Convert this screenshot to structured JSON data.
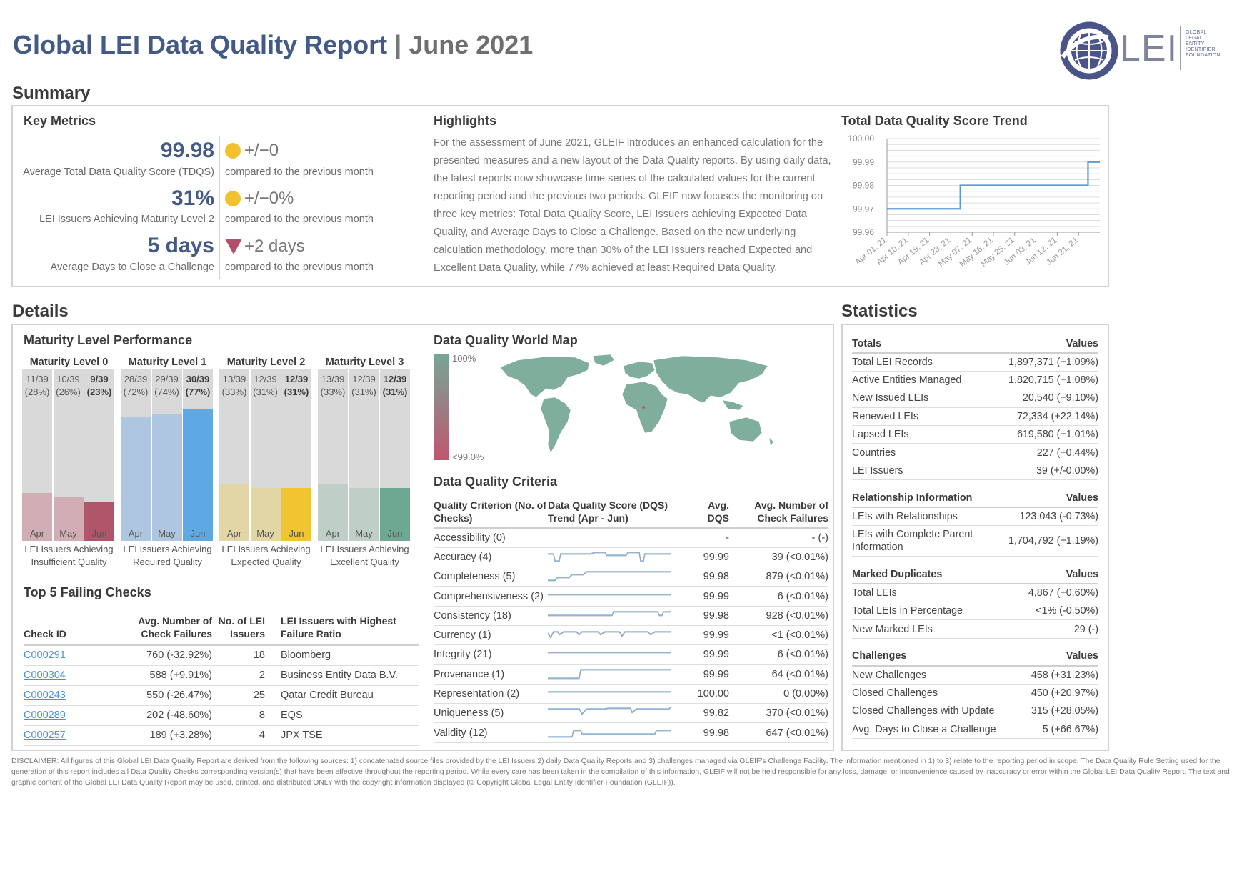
{
  "header": {
    "title": "Global LEI Data Quality Report",
    "separator": "|",
    "month": "June 2021"
  },
  "logo": {
    "text": "LEI",
    "fine": [
      "GLOBAL",
      "LEGAL",
      "ENTITY",
      "IDENTIFIER",
      "FOUNDATION"
    ]
  },
  "summary": {
    "heading": "Summary",
    "key_metrics": {
      "title": "Key Metrics",
      "items": [
        {
          "value": "99.98",
          "label": "Average Total Data Quality Score (TDQS)",
          "change": "+/−0",
          "indicator": "yellow-dot",
          "compare": "compared to the previous month"
        },
        {
          "value": "31%",
          "label": "LEI Issuers Achieving Maturity Level 2",
          "change": "+/−0%",
          "indicator": "yellow-dot",
          "compare": "compared to the previous month"
        },
        {
          "value": "5 days",
          "label": "Average Days to Close a Challenge",
          "change": "+2 days",
          "indicator": "red-triangle-down",
          "compare": "compared to the previous month"
        }
      ]
    },
    "highlights": {
      "title": "Highlights",
      "text": "For the assessment of June 2021, GLEIF introduces an enhanced calculation for the presented measures and a new layout of the Data Quality reports. By using daily data, the latest reports now showcase time series of the calculated values for the current reporting period and the previous two periods. GLEIF now focuses the monitoring on three key metrics: Total Data Quality Score, LEI Issuers achieving Expected Data Quality, and Average Days to Close a Challenge. Based on the new underlying calculation methodology, more than 30% of the LEI Issuers reached Expected and Excellent Data Quality, while 77% achieved at least Required Data Quality."
    },
    "trend": {
      "title": "Total Data Quality Score Trend"
    }
  },
  "chart_data": {
    "type": "line",
    "title": "Total Data Quality Score Trend",
    "xlabel": "",
    "ylabel": "",
    "y_ticks": [
      "100.00",
      "99.99",
      "99.98",
      "99.97",
      "99.96"
    ],
    "ylim": [
      99.96,
      100.0
    ],
    "x_ticks": [
      "Apr 01, 21",
      "Apr 10, 21",
      "Apr 19, 21",
      "Apr 28, 21",
      "May 07, 21",
      "May 16, 21",
      "May 25, 21",
      "Jun 03, 21",
      "Jun 12, 21",
      "Jun 21, 21"
    ],
    "series": [
      {
        "color": "#5b9bd5",
        "points": [
          [
            "Apr 01, 21",
            99.97
          ],
          [
            "May 02, 21",
            99.97
          ],
          [
            "May 02, 21",
            99.98
          ],
          [
            "Jun 25, 21",
            99.98
          ],
          [
            "Jun 25, 21",
            99.99
          ],
          [
            "Jun 30, 21",
            99.99
          ]
        ]
      }
    ],
    "grid": true
  },
  "details": {
    "heading": "Details",
    "maturity": {
      "title": "Maturity Level Performance",
      "groups": [
        {
          "title": "Maturity Level 0",
          "label": "LEI Issuers Achieving Insufficient Quality",
          "light": "#d1aeb3",
          "dark": "#b0566a",
          "months": [
            {
              "name": "Apr",
              "count": "11/39",
              "pct": "(28%)",
              "value": 0.28
            },
            {
              "name": "May",
              "count": "10/39",
              "pct": "(26%)",
              "value": 0.26
            },
            {
              "name": "Jun",
              "count": "9/39",
              "pct": "(23%)",
              "value": 0.23
            }
          ]
        },
        {
          "title": "Maturity Level 1",
          "label": "LEI Issuers Achieving Required Quality",
          "light": "#aec6df",
          "dark": "#5ea9e4",
          "months": [
            {
              "name": "Apr",
              "count": "28/39",
              "pct": "(72%)",
              "value": 0.72
            },
            {
              "name": "May",
              "count": "29/39",
              "pct": "(74%)",
              "value": 0.74
            },
            {
              "name": "Jun",
              "count": "30/39",
              "pct": "(77%)",
              "value": 0.77
            }
          ]
        },
        {
          "title": "Maturity Level 2",
          "label": "LEI Issuers Achieving Expected Quality",
          "light": "#e2d6a6",
          "dark": "#f0c531",
          "months": [
            {
              "name": "Apr",
              "count": "13/39",
              "pct": "(33%)",
              "value": 0.33
            },
            {
              "name": "May",
              "count": "12/39",
              "pct": "(31%)",
              "value": 0.31
            },
            {
              "name": "Jun",
              "count": "12/39",
              "pct": "(31%)",
              "value": 0.31
            }
          ]
        },
        {
          "title": "Maturity Level 3",
          "label": "LEI Issuers Achieving Excellent Quality",
          "light": "#bfcfc7",
          "dark": "#6fa892",
          "months": [
            {
              "name": "Apr",
              "count": "13/39",
              "pct": "(33%)",
              "value": 0.33
            },
            {
              "name": "May",
              "count": "12/39",
              "pct": "(31%)",
              "value": 0.31
            },
            {
              "name": "Jun",
              "count": "12/39",
              "pct": "(31%)",
              "value": 0.31
            }
          ]
        }
      ]
    },
    "failing": {
      "title": "Top 5 Failing Checks",
      "headers": [
        "Check ID",
        "Avg. Number of Check Failures",
        "No. of LEI Issuers",
        "LEI Issuers with Highest Failure Ratio"
      ],
      "rows": [
        [
          "C000291",
          "760 (-32.92%)",
          "18",
          "Bloomberg"
        ],
        [
          "C000304",
          "588 (+9.91%)",
          "2",
          "Business Entity Data B.V."
        ],
        [
          "C000243",
          "550 (-26.47%)",
          "25",
          "Qatar Credit Bureau"
        ],
        [
          "C000289",
          "202 (-48.60%)",
          "8",
          "EQS"
        ],
        [
          "C000257",
          "189 (+3.28%)",
          "4",
          "JPX TSE"
        ]
      ]
    },
    "map": {
      "title": "Data Quality World Map",
      "legend_max": "100%",
      "legend_min": "<99.0%"
    },
    "criteria": {
      "title": "Data Quality Criteria",
      "headers": [
        "Quality Criterion (No. of Checks)",
        "Data Quality Score (DQS) Trend (Apr - Jun)",
        "Avg. DQS",
        "Avg. Number of Check Failures"
      ],
      "rows": [
        {
          "name": "Accessibility (0)",
          "dqs": "-",
          "fail": "- (-)",
          "spark": "none"
        },
        {
          "name": "Accuracy (4)",
          "dqs": "99.99",
          "fail": "39 (<0.01%)",
          "spark": "accuracy"
        },
        {
          "name": "Completeness (5)",
          "dqs": "99.98",
          "fail": "879 (<0.01%)",
          "spark": "completeness"
        },
        {
          "name": "Comprehensiveness (2)",
          "dqs": "99.99",
          "fail": "6 (<0.01%)",
          "spark": "flat"
        },
        {
          "name": "Consistency (18)",
          "dqs": "99.98",
          "fail": "928 (<0.01%)",
          "spark": "consistency"
        },
        {
          "name": "Currency (1)",
          "dqs": "99.99",
          "fail": "<1 (<0.01%)",
          "spark": "currency"
        },
        {
          "name": "Integrity (21)",
          "dqs": "99.99",
          "fail": "6 (<0.01%)",
          "spark": "flat"
        },
        {
          "name": "Provenance (1)",
          "dqs": "99.99",
          "fail": "64 (<0.01%)",
          "spark": "provenance"
        },
        {
          "name": "Representation (2)",
          "dqs": "100.00",
          "fail": "0 (0.00%)",
          "spark": "flat"
        },
        {
          "name": "Uniqueness (5)",
          "dqs": "99.82",
          "fail": "370 (<0.01%)",
          "spark": "uniqueness"
        },
        {
          "name": "Validity (12)",
          "dqs": "99.98",
          "fail": "647 (<0.01%)",
          "spark": "validity"
        }
      ]
    }
  },
  "statistics": {
    "heading": "Statistics",
    "sections": [
      {
        "title": "Totals",
        "values_label": "Values",
        "rows": [
          [
            "Total LEI Records",
            "1,897,371 (+1.09%)"
          ],
          [
            "Active Entities Managed",
            "1,820,715 (+1.08%)"
          ],
          [
            "New Issued LEIs",
            "20,540 (+9.10%)"
          ],
          [
            "Renewed LEIs",
            "72,334 (+22.14%)"
          ],
          [
            "Lapsed LEIs",
            "619,580 (+1.01%)"
          ],
          [
            "Countries",
            "227 (+0.44%)"
          ],
          [
            "LEI Issuers",
            "39 (+/-0.00%)"
          ]
        ]
      },
      {
        "title": "Relationship Information",
        "values_label": "Values",
        "rows": [
          [
            "LEIs with Relationships",
            "123,043 (-0.73%)"
          ],
          [
            "LEIs with Complete Parent Information",
            "1,704,792 (+1.19%)"
          ]
        ]
      },
      {
        "title": "Marked Duplicates",
        "values_label": "Values",
        "rows": [
          [
            "Total LEIs",
            "4,867 (+0.60%)"
          ],
          [
            "Total LEIs in Percentage",
            "<1% (-0.50%)"
          ],
          [
            "New Marked LEIs",
            "29 (-)"
          ]
        ]
      },
      {
        "title": "Challenges",
        "values_label": "Values",
        "rows": [
          [
            "New Challenges",
            "458 (+31.23%)"
          ],
          [
            "Closed Challenges",
            "450 (+20.97%)"
          ],
          [
            "Closed Challenges with Update",
            "315 (+28.05%)"
          ],
          [
            "Avg. Days to Close a Challenge",
            "5 (+66.67%)"
          ]
        ]
      }
    ]
  },
  "disclaimer": "DISCLAIMER: All figures of this Global LEI Data Quality Report are derived from the following sources: 1) concatenated source files provided by the LEI Issuers 2) daily Data Quality Reports and 3) challenges managed via GLEIF's Challenge Facility. The information mentioned in 1) to 3) relate to the reporting period in scope. The Data Quality Rule Setting used for the generation of this report includes all Data Quality Checks corresponding version(s) that have been effective throughout the reporting period. While every care has been taken in the compilation of this information, GLEIF will not be held responsible for any loss, damage, or inconvenience caused by inaccuracy or error within the Global LEI Data Quality Report. The text and graphic content of the Global LEI Data Quality Report may be used, printed, and distributed ONLY with the copyright information displayed (© Copyright Global Legal Entity Identifier Foundation (GLEIF))."
}
